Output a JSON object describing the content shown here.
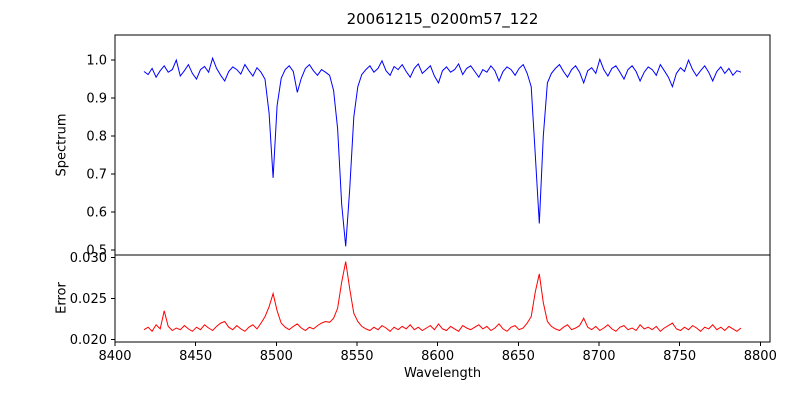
{
  "window": {
    "title": "20061215_0200m57_122"
  },
  "chart_data": {
    "type": "line",
    "title": "20061215_0200m57_122",
    "xlabel": "Wavelength",
    "x_start": 8418,
    "x_step": 2.5,
    "xlim": [
      8400,
      8806
    ],
    "xticks": [
      8400,
      8450,
      8500,
      8550,
      8600,
      8650,
      8700,
      8750,
      8800
    ],
    "grid": false,
    "legend": "none",
    "features": {
      "absorption_line_centers": [
        8498,
        8542,
        8662
      ]
    },
    "panels": [
      {
        "name": "spectrum",
        "ylabel": "Spectrum",
        "ylim": [
          0.487,
          1.066
        ],
        "yticks": [
          0.5,
          0.6,
          0.7,
          0.8,
          0.9,
          1.0
        ],
        "ytick_labels": [
          "0.5",
          "0.6",
          "0.7",
          "0.8",
          "0.9",
          "1.0"
        ],
        "color": "#0000ff",
        "values": [
          0.97,
          0.962,
          0.978,
          0.955,
          0.972,
          0.985,
          0.968,
          0.975,
          1.0,
          0.958,
          0.972,
          0.988,
          0.965,
          0.95,
          0.975,
          0.983,
          0.968,
          1.005,
          0.978,
          0.96,
          0.945,
          0.97,
          0.982,
          0.975,
          0.963,
          0.988,
          0.972,
          0.958,
          0.98,
          0.968,
          0.95,
          0.86,
          0.69,
          0.88,
          0.952,
          0.975,
          0.985,
          0.97,
          0.915,
          0.952,
          0.978,
          0.988,
          0.972,
          0.96,
          0.975,
          0.968,
          0.96,
          0.92,
          0.82,
          0.62,
          0.51,
          0.66,
          0.85,
          0.93,
          0.962,
          0.975,
          0.985,
          0.968,
          0.978,
          0.998,
          0.972,
          0.96,
          0.983,
          0.975,
          0.988,
          0.97,
          0.955,
          0.978,
          0.99,
          0.965,
          0.975,
          0.985,
          0.958,
          0.94,
          0.972,
          0.982,
          0.968,
          0.975,
          0.99,
          0.962,
          0.978,
          0.985,
          0.97,
          0.955,
          0.975,
          0.968,
          0.985,
          0.972,
          0.945,
          0.97,
          0.982,
          0.975,
          0.96,
          0.978,
          0.988,
          0.965,
          0.93,
          0.75,
          0.57,
          0.8,
          0.94,
          0.965,
          0.978,
          0.988,
          0.97,
          0.955,
          0.975,
          0.985,
          0.968,
          0.94,
          0.972,
          0.98,
          0.965,
          1.002,
          0.975,
          0.958,
          0.978,
          0.985,
          0.968,
          0.95,
          0.975,
          0.985,
          0.97,
          0.945,
          0.968,
          0.982,
          0.975,
          0.96,
          0.988,
          0.972,
          0.955,
          0.93,
          0.965,
          0.98,
          0.97,
          1.0,
          0.975,
          0.958,
          0.972,
          0.985,
          0.968,
          0.945,
          0.97,
          0.982,
          0.965,
          0.978,
          0.96,
          0.972,
          0.968
        ]
      },
      {
        "name": "error",
        "ylabel": "Error",
        "ylim": [
          0.0197,
          0.0303
        ],
        "yticks": [
          0.02,
          0.025,
          0.03
        ],
        "ytick_labels": [
          "0.020",
          "0.025",
          "0.030"
        ],
        "color": "#ff0000",
        "values": [
          0.0212,
          0.0215,
          0.021,
          0.0218,
          0.0213,
          0.0235,
          0.0216,
          0.0211,
          0.0214,
          0.0212,
          0.0217,
          0.0213,
          0.021,
          0.0215,
          0.0212,
          0.0218,
          0.0214,
          0.0211,
          0.0216,
          0.022,
          0.0222,
          0.0215,
          0.0212,
          0.0217,
          0.0213,
          0.021,
          0.0215,
          0.0218,
          0.0213,
          0.022,
          0.0228,
          0.024,
          0.0256,
          0.0235,
          0.022,
          0.0215,
          0.0212,
          0.0216,
          0.0219,
          0.0214,
          0.0211,
          0.0215,
          0.0213,
          0.0217,
          0.022,
          0.0222,
          0.0221,
          0.0226,
          0.0238,
          0.027,
          0.0295,
          0.0262,
          0.0232,
          0.0222,
          0.0216,
          0.0213,
          0.0211,
          0.0215,
          0.0212,
          0.0217,
          0.0214,
          0.021,
          0.0215,
          0.0212,
          0.0216,
          0.0213,
          0.0218,
          0.0212,
          0.0215,
          0.0211,
          0.0214,
          0.0217,
          0.0212,
          0.0219,
          0.0213,
          0.0211,
          0.0216,
          0.0213,
          0.021,
          0.0217,
          0.0214,
          0.0212,
          0.0215,
          0.0218,
          0.0213,
          0.0216,
          0.0211,
          0.0214,
          0.0219,
          0.0213,
          0.021,
          0.0215,
          0.0217,
          0.0212,
          0.0214,
          0.022,
          0.0228,
          0.0258,
          0.028,
          0.0245,
          0.0222,
          0.0216,
          0.0213,
          0.0211,
          0.0215,
          0.0218,
          0.0212,
          0.0214,
          0.0217,
          0.0226,
          0.0215,
          0.0212,
          0.0216,
          0.0211,
          0.0214,
          0.0218,
          0.0213,
          0.021,
          0.0215,
          0.0217,
          0.0212,
          0.0214,
          0.0211,
          0.0218,
          0.0213,
          0.0215,
          0.0212,
          0.0216,
          0.021,
          0.0214,
          0.0217,
          0.022,
          0.0213,
          0.0211,
          0.0215,
          0.0212,
          0.0217,
          0.0214,
          0.021,
          0.0215,
          0.0213,
          0.0218,
          0.0212,
          0.0215,
          0.0211,
          0.0216,
          0.0213,
          0.021,
          0.0214
        ]
      }
    ]
  }
}
